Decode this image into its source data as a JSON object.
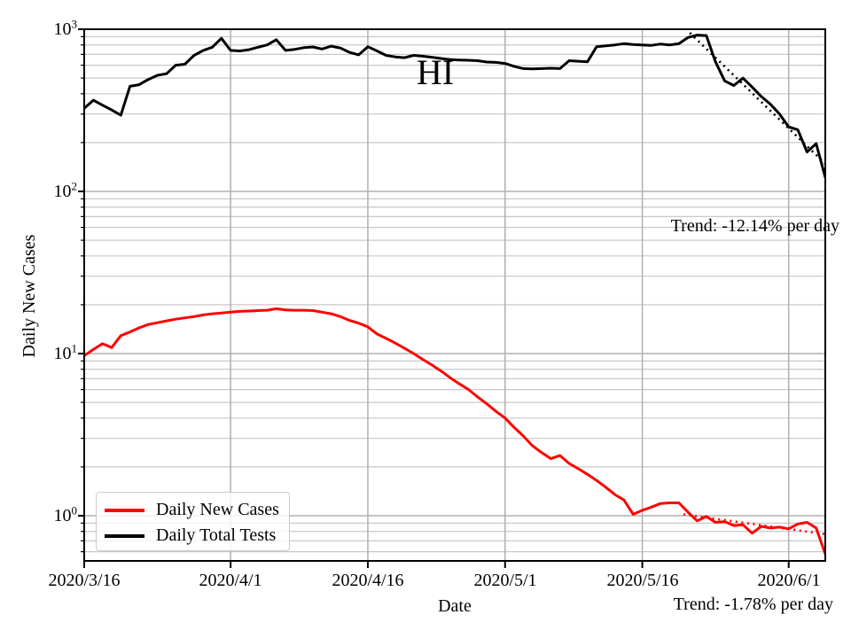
{
  "figure": {
    "state_label": "HI",
    "ylabel": "Daily New Cases",
    "xlabel": "Date"
  },
  "chart_data": {
    "type": "line",
    "yscale": "log",
    "grid": true,
    "x_start_date": "2020/3/16",
    "x_end_date": "2020/6/5",
    "x_tick_labels": [
      "2020/3/16",
      "2020/4/1",
      "2020/4/16",
      "2020/5/1",
      "2020/5/16",
      "2020/6/1"
    ],
    "x_tick_days": [
      0,
      16,
      31,
      46,
      61,
      77
    ],
    "y_tick_base": "10",
    "y_tick_exponents": [
      3,
      2,
      1,
      0
    ],
    "ylim": [
      0.53,
      1000
    ],
    "series": [
      {
        "name": "Daily New Cases",
        "color": "#ff0000",
        "values": [
          9.7,
          10.6,
          11.5,
          10.9,
          12.9,
          13.6,
          14.4,
          15.1,
          15.5,
          15.9,
          16.3,
          16.6,
          16.9,
          17.3,
          17.6,
          17.8,
          18.0,
          18.2,
          18.3,
          18.4,
          18.5,
          18.9,
          18.6,
          18.5,
          18.5,
          18.4,
          18.0,
          17.6,
          16.9,
          16.0,
          15.4,
          14.6,
          13.2,
          12.4,
          11.6,
          10.8,
          10.0,
          9.2,
          8.5,
          7.8,
          7.1,
          6.5,
          6.0,
          5.4,
          4.9,
          4.4,
          4.0,
          3.5,
          3.1,
          2.7,
          2.45,
          2.25,
          2.35,
          2.1,
          1.95,
          1.8,
          1.65,
          1.5,
          1.35,
          1.25,
          1.02,
          1.08,
          1.13,
          1.19,
          1.2,
          1.2,
          1.05,
          0.93,
          0.99,
          0.91,
          0.92,
          0.87,
          0.88,
          0.78,
          0.86,
          0.84,
          0.85,
          0.83,
          0.89,
          0.91,
          0.84,
          0.58
        ]
      },
      {
        "name": "Daily Total Tests",
        "color": "#000000",
        "values": [
          325,
          365,
          340,
          318,
          295,
          445,
          455,
          490,
          520,
          532,
          600,
          608,
          690,
          740,
          775,
          880,
          740,
          735,
          748,
          775,
          800,
          862,
          740,
          752,
          770,
          778,
          755,
          786,
          766,
          720,
          695,
          780,
          735,
          690,
          675,
          668,
          690,
          682,
          672,
          660,
          650,
          646,
          644,
          640,
          628,
          625,
          615,
          590,
          572,
          570,
          572,
          575,
          572,
          640,
          635,
          630,
          780,
          790,
          800,
          815,
          805,
          800,
          795,
          810,
          800,
          815,
          890,
          920,
          915,
          630,
          480,
          450,
          500,
          440,
          385,
          345,
          300,
          250,
          240,
          175,
          197,
          122
        ]
      }
    ],
    "trend_lines": [
      {
        "series": "Daily Total Tests",
        "label": "Trend: -12.14% per day",
        "rate_percent_per_day": -12.14,
        "color": "#000000",
        "start_day": 66.2,
        "end_day": 81,
        "start_value": 950,
        "end_value": 148
      },
      {
        "series": "Daily New Cases",
        "label": "Trend: -1.78% per day",
        "rate_percent_per_day": -1.78,
        "color": "#ff0000",
        "start_day": 65.5,
        "end_day": 81,
        "start_value": 1.02,
        "end_value": 0.77
      }
    ],
    "legend": {
      "position": "lower left",
      "entries": [
        {
          "label": "Daily New Cases",
          "color": "#ff0000"
        },
        {
          "label": "Daily Total Tests",
          "color": "#000000"
        }
      ]
    },
    "colors": {
      "axis": "#000000",
      "major_grid": "#b0b0b0",
      "minor_grid": "#c8c8c8",
      "background": "#ffffff"
    }
  }
}
